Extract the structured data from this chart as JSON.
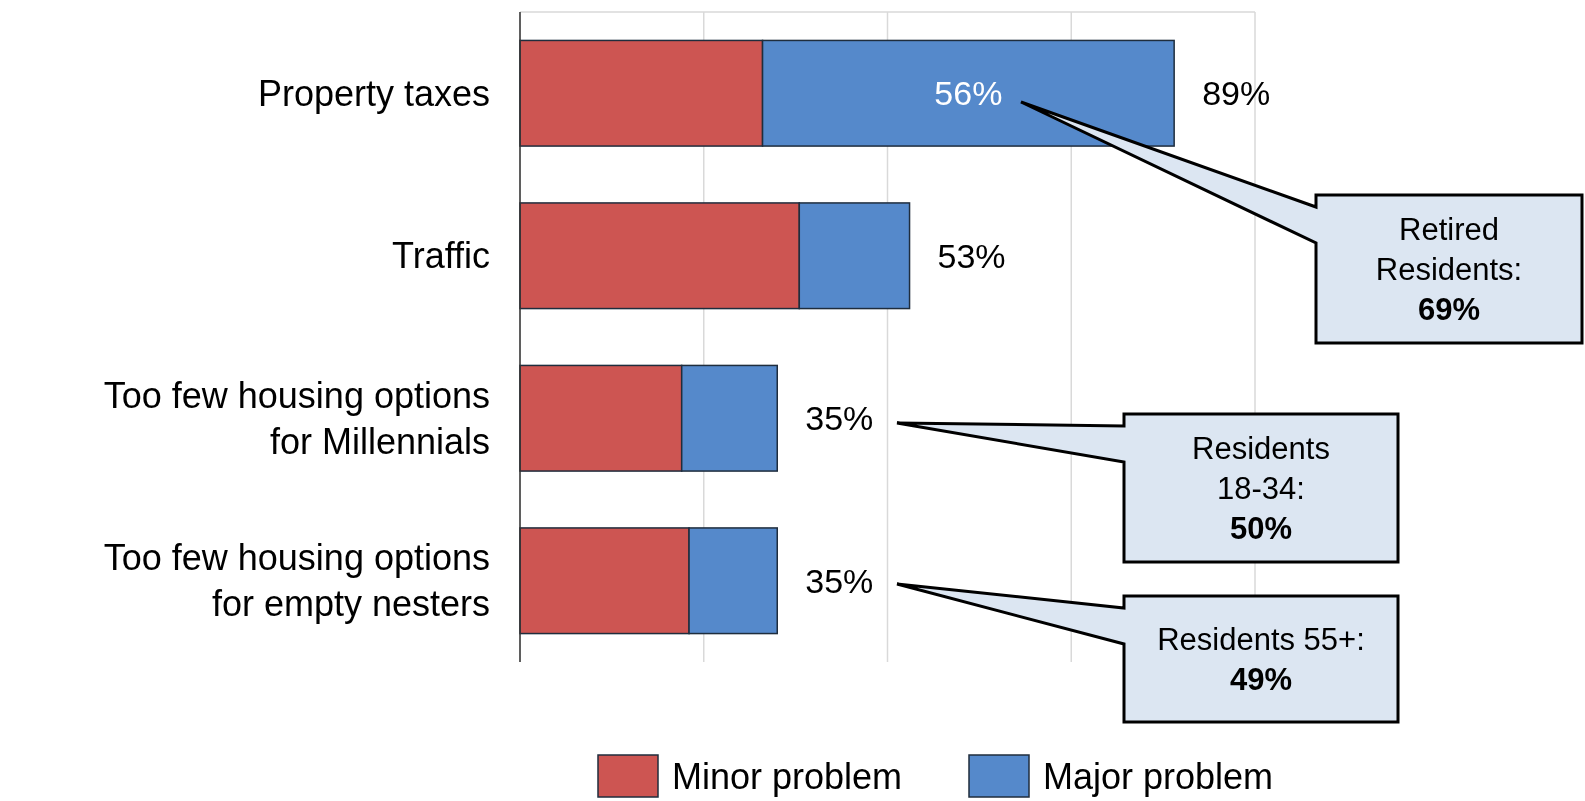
{
  "chart_data": {
    "type": "bar",
    "orientation": "horizontal",
    "stacked": true,
    "categories": [
      "Property taxes",
      "Traffic",
      "Too few housing options for Millennials",
      "Too few housing options for empty nesters"
    ],
    "series": [
      {
        "name": "Minor problem",
        "color": "#cd5552",
        "values": [
          33,
          38,
          22,
          23
        ]
      },
      {
        "name": "Major problem",
        "color": "#5589cb",
        "values": [
          56,
          15,
          13,
          12
        ],
        "value_labels": [
          "56%",
          null,
          null,
          null
        ]
      }
    ],
    "totals": [
      "89%",
      "53%",
      "35%",
      "35%"
    ],
    "xlim": [
      0,
      100
    ],
    "xticks": [
      {
        "value": 0,
        "label": null
      },
      {
        "value": 25,
        "label": null
      },
      {
        "value": 50,
        "label": null
      },
      {
        "value": 75,
        "label": null
      },
      {
        "value": 100,
        "label": null
      }
    ],
    "tick_labels": "y",
    "grid": "x",
    "legend": "bottom",
    "annotations": [
      "Retired\nResidents:\n69%",
      "Residents\n18-34:\n50%",
      "Residents 55+:\n49%"
    ]
  }
}
